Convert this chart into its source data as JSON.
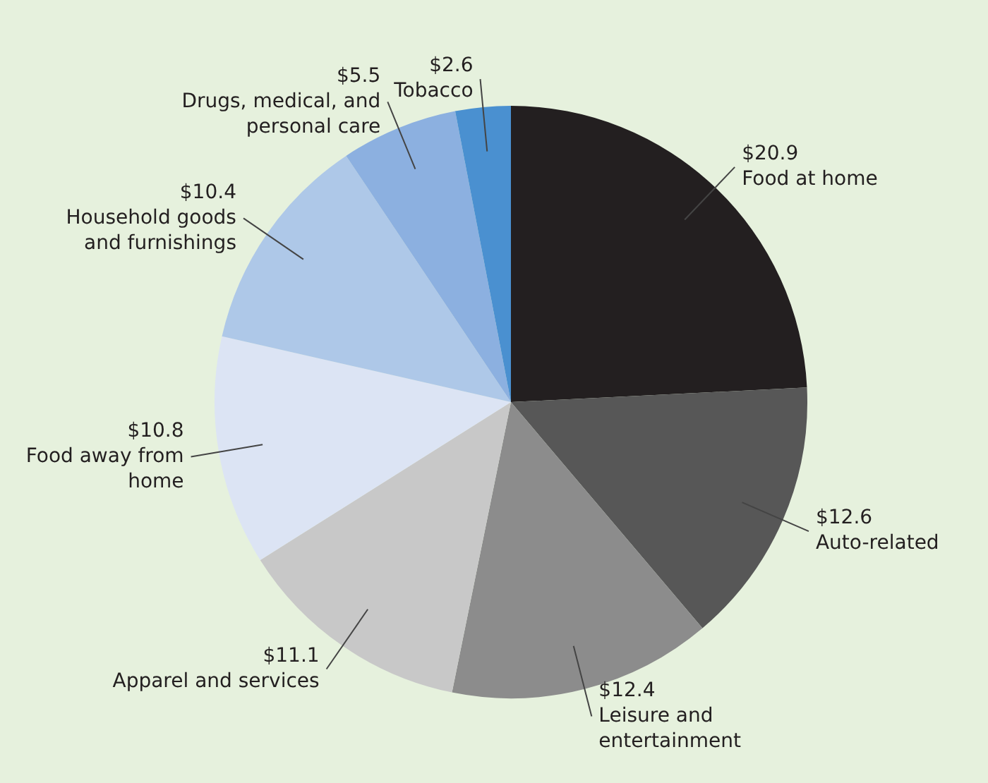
{
  "chart_data": {
    "type": "pie",
    "categories": [
      "Food at home",
      "Auto-related",
      "Leisure and entertainment",
      "Apparel and services",
      "Food away from home",
      "Household goods and furnishings",
      "Drugs, medical, and personal care",
      "Tobacco"
    ],
    "values": [
      20.9,
      12.6,
      12.4,
      11.1,
      10.8,
      10.4,
      5.5,
      2.6
    ],
    "colors": [
      "#231f20",
      "#575757",
      "#8c8c8c",
      "#c8c8c8",
      "#dce4f4",
      "#aec8e8",
      "#8cb0e0",
      "#4a90d0"
    ],
    "value_labels": [
      "$20.9",
      "$12.6",
      "$12.4",
      "$11.1",
      "$10.8",
      "$10.4",
      "$5.5",
      "$2.6"
    ]
  }
}
